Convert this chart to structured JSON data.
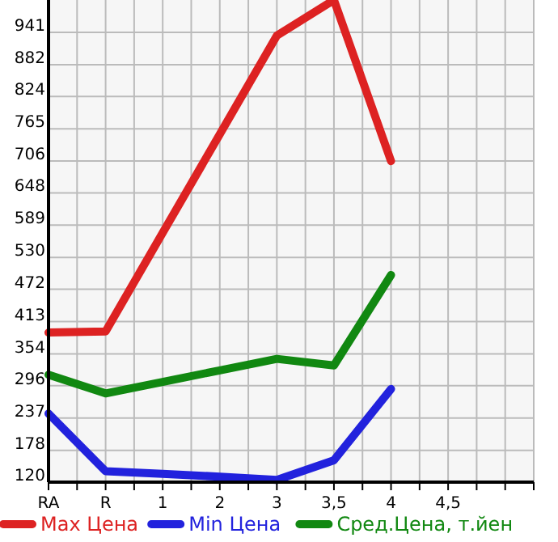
{
  "chart_data": {
    "type": "line",
    "categories": [
      "RA",
      "R",
      "1",
      "2",
      "3",
      "3,5",
      "4",
      "4,5"
    ],
    "ylim": [
      120,
      1000
    ],
    "yticks": [
      120,
      178,
      237,
      296,
      354,
      413,
      472,
      530,
      589,
      648,
      706,
      765,
      824,
      882,
      941
    ],
    "grid": true,
    "legend": "bottom",
    "marker": "none",
    "line_style": "solid",
    "series": [
      {
        "name": "Max Цена",
        "color": "#dd2222",
        "values": [
          393,
          395,
          575,
          755,
          935,
          1000,
          706,
          null
        ]
      },
      {
        "name": "Min Цена",
        "color": "#2222dd",
        "values": [
          245,
          140,
          135,
          130,
          124,
          160,
          290,
          null
        ]
      },
      {
        "name": "Сред.Цена, т.йен",
        "color": "#118811",
        "values": [
          316,
          282,
          303,
          324,
          345,
          333,
          498,
          null
        ]
      }
    ]
  }
}
